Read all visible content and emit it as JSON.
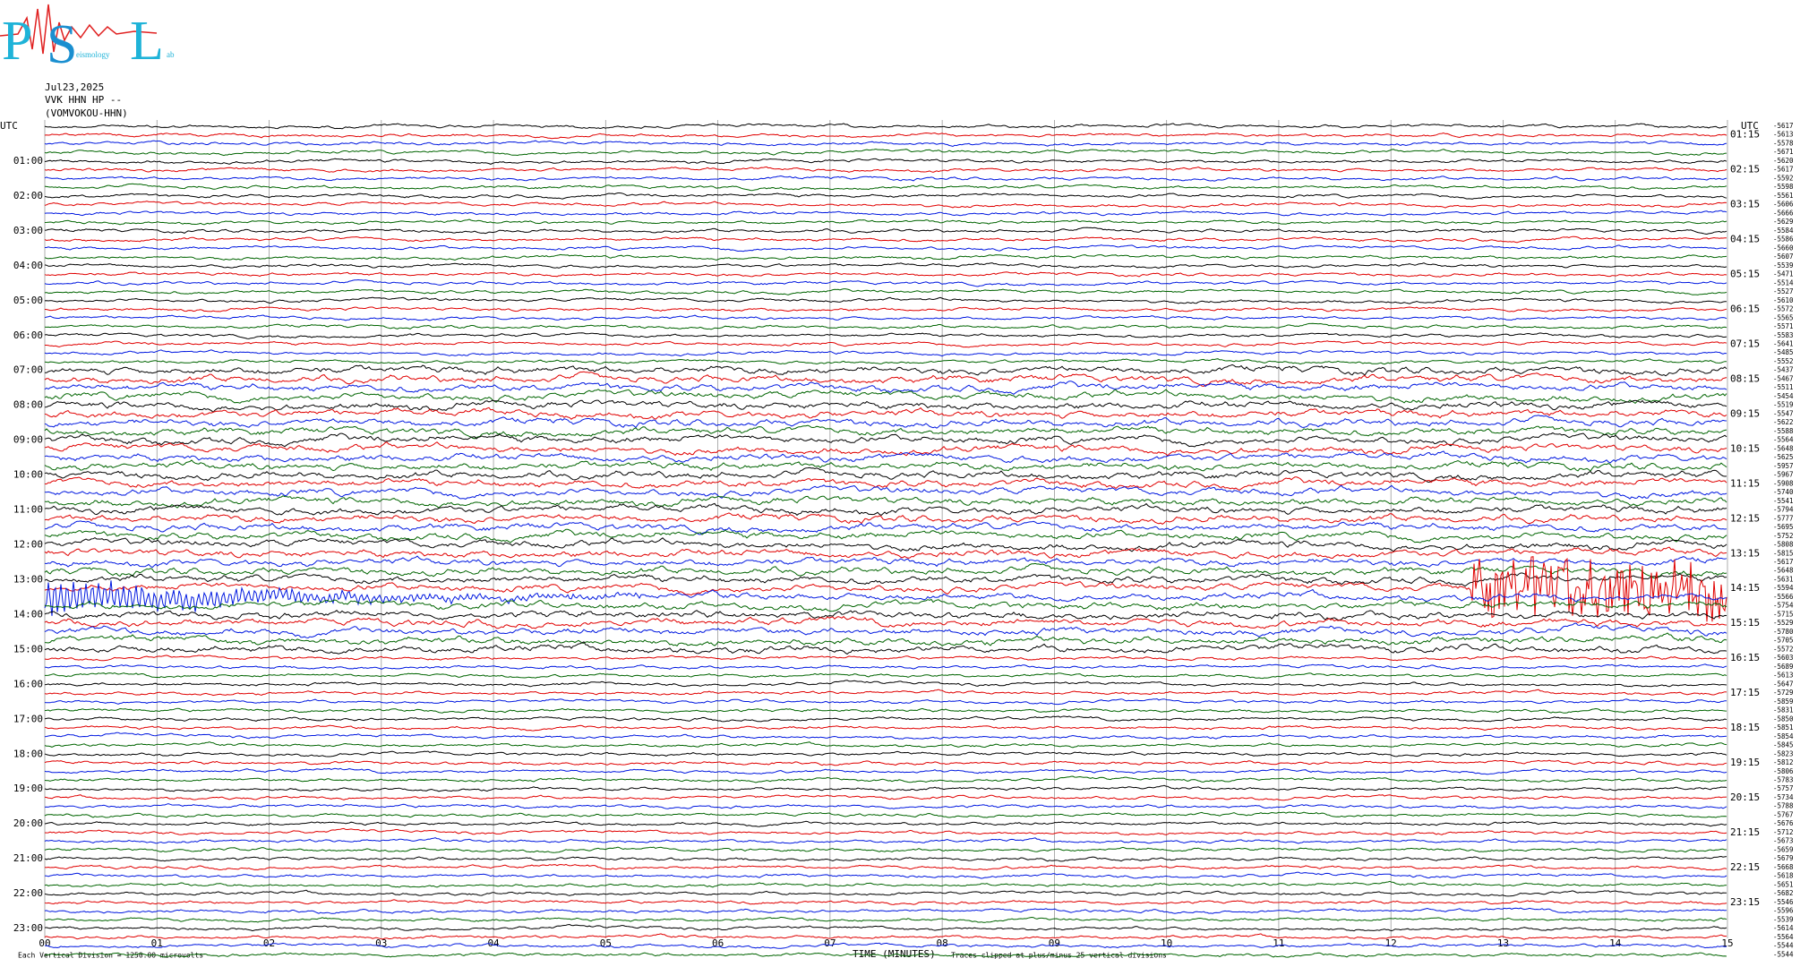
{
  "logo": {
    "letters": [
      "P",
      "S",
      "L"
    ],
    "small": [
      "eismology",
      "ab"
    ]
  },
  "header": {
    "date": "Jul23,2025",
    "station": "VVK HHN HP --",
    "name": "(VOMVOKOU-HHN)"
  },
  "utc_left": "UTC",
  "utc_right": "UTC",
  "left_times": [
    "01:00",
    "02:00",
    "03:00",
    "04:00",
    "05:00",
    "06:00",
    "07:00",
    "08:00",
    "09:00",
    "10:00",
    "11:00",
    "12:00",
    "13:00",
    "14:00",
    "15:00",
    "16:00",
    "17:00",
    "18:00",
    "19:00",
    "20:00",
    "21:00",
    "22:00",
    "23:00"
  ],
  "right_times": [
    "01:15",
    "02:15",
    "03:15",
    "04:15",
    "05:15",
    "06:15",
    "07:15",
    "08:15",
    "09:15",
    "10:15",
    "11:15",
    "12:15",
    "13:15",
    "14:15",
    "15:15",
    "16:15",
    "17:15",
    "18:15",
    "19:15",
    "20:15",
    "21:15",
    "22:15",
    "23:15"
  ],
  "offsets": [
    -5617,
    -5613,
    -5578,
    -5671,
    -5620,
    -5617,
    -5592,
    -5598,
    -5561,
    -5606,
    -5666,
    -5629,
    -5584,
    -5586,
    -5660,
    -5607,
    -5539,
    -5471,
    -5514,
    -5527,
    -5610,
    -5572,
    -5565,
    -5571,
    -5583,
    -5641,
    -5485,
    -5552,
    -5437,
    -5467,
    -5511,
    -5454,
    -5519,
    -5547,
    -5622,
    -5588,
    -5564,
    -5648,
    -5625,
    -5957,
    -5967,
    -5908,
    -5740,
    -5541,
    -5794,
    -5777,
    -5695,
    -5752,
    -5808,
    -5815,
    -5617,
    -5648,
    -5631,
    -5594,
    -5566,
    -5754,
    -5715,
    -5529,
    -5780,
    -5705,
    -5572,
    -5603,
    -5689,
    -5613,
    -5647,
    -5729,
    -5859,
    -5831,
    -5850,
    -5851,
    -5854,
    -5845,
    -5823,
    -5812,
    -5806,
    -5783,
    -5757,
    -5734,
    -5788,
    -5767,
    -5676,
    -5712,
    -5673,
    -5659,
    -5679,
    -5668,
    -5618,
    -5651,
    -5682,
    -5546,
    -5596,
    -5539,
    -5614,
    -5564,
    -5544,
    -5544
  ],
  "x_labels": [
    "00",
    "01",
    "02",
    "03",
    "04",
    "05",
    "06",
    "07",
    "08",
    "09",
    "10",
    "11",
    "12",
    "13",
    "14",
    "15"
  ],
  "footer": {
    "scale": "Each Vertical Division = 1250.00 microvolts",
    "axis_title": "TIME (MINUTES)",
    "clip": "Traces clipped at plus/minus 25 vertical divisions"
  }
}
